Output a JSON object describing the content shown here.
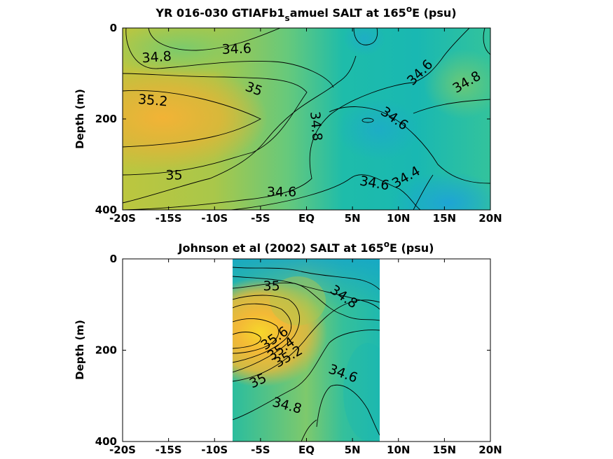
{
  "chart_data": [
    {
      "type": "heatmap",
      "title": {
        "pre": "YR 016-030 GTIAFb1",
        "sub": "s",
        "mid": "amuel SALT at 165",
        "sup": "o",
        "post": "E (psu)"
      },
      "ylabel": "Depth (m)",
      "xlim": [
        -20,
        20
      ],
      "ylim": [
        0,
        400
      ],
      "y_reversed": true,
      "x_ticks": [
        -20,
        -15,
        -10,
        -5,
        0,
        5,
        10,
        15,
        20
      ],
      "x_tick_labels": [
        "-20S",
        "-15S",
        "-10S",
        "-5S",
        "EQ",
        "5N",
        "10N",
        "15N",
        "20N"
      ],
      "y_ticks": [
        0,
        200,
        400
      ],
      "y_tick_labels": [
        "0",
        "200",
        "400"
      ],
      "data_extent": [
        -20,
        20
      ],
      "contour_labels": [
        {
          "text": "34.8",
          "x": -16.3,
          "y": 63,
          "angle": -4
        },
        {
          "text": "34.6",
          "x": -7.6,
          "y": 45,
          "angle": -2
        },
        {
          "text": "35",
          "x": -5.7,
          "y": 133,
          "angle": 20
        },
        {
          "text": "35.2",
          "x": -16.7,
          "y": 158,
          "angle": 5
        },
        {
          "text": "34.8",
          "x": 1.1,
          "y": 216,
          "angle": 85
        },
        {
          "text": "34.6",
          "x": 12.3,
          "y": 97,
          "angle": -45
        },
        {
          "text": "34.8",
          "x": 17.4,
          "y": 118,
          "angle": -30
        },
        {
          "text": "34.6",
          "x": 9.6,
          "y": 198,
          "angle": 35
        },
        {
          "text": "35",
          "x": -14.4,
          "y": 322,
          "angle": 0
        },
        {
          "text": "34.6",
          "x": -2.7,
          "y": 359,
          "angle": 0
        },
        {
          "text": "34.6",
          "x": 7.4,
          "y": 340,
          "angle": 10
        },
        {
          "text": "34.4",
          "x": 10.8,
          "y": 327,
          "angle": -30
        }
      ]
    },
    {
      "type": "heatmap",
      "title": {
        "pre": "Johnson et al (2002) SALT at 165",
        "sup": "o",
        "post": "E (psu)"
      },
      "ylabel": "Depth (m)",
      "xlim": [
        -20,
        20
      ],
      "ylim": [
        0,
        400
      ],
      "y_reversed": true,
      "x_ticks": [
        -20,
        -15,
        -10,
        -5,
        0,
        5,
        10,
        15,
        20
      ],
      "x_tick_labels": [
        "-20S",
        "-15S",
        "-10S",
        "-5S",
        "EQ",
        "5N",
        "10N",
        "15N",
        "20N"
      ],
      "y_ticks": [
        0,
        200,
        400
      ],
      "y_tick_labels": [
        "0",
        "200",
        "400"
      ],
      "data_extent": [
        -8,
        8
      ],
      "contour_labels": [
        {
          "text": "35",
          "x": -3.8,
          "y": 58,
          "angle": 0
        },
        {
          "text": "34.8",
          "x": 4.1,
          "y": 82,
          "angle": 35
        },
        {
          "text": "35.6",
          "x": -3.5,
          "y": 173,
          "angle": -35
        },
        {
          "text": "35.4",
          "x": -2.8,
          "y": 196,
          "angle": -35
        },
        {
          "text": "35.2",
          "x": -2.0,
          "y": 213,
          "angle": -30
        },
        {
          "text": "35",
          "x": -5.3,
          "y": 266,
          "angle": -25
        },
        {
          "text": "34.6",
          "x": 4.0,
          "y": 250,
          "angle": 20
        },
        {
          "text": "34.8",
          "x": -2.1,
          "y": 320,
          "angle": 15
        }
      ]
    }
  ]
}
